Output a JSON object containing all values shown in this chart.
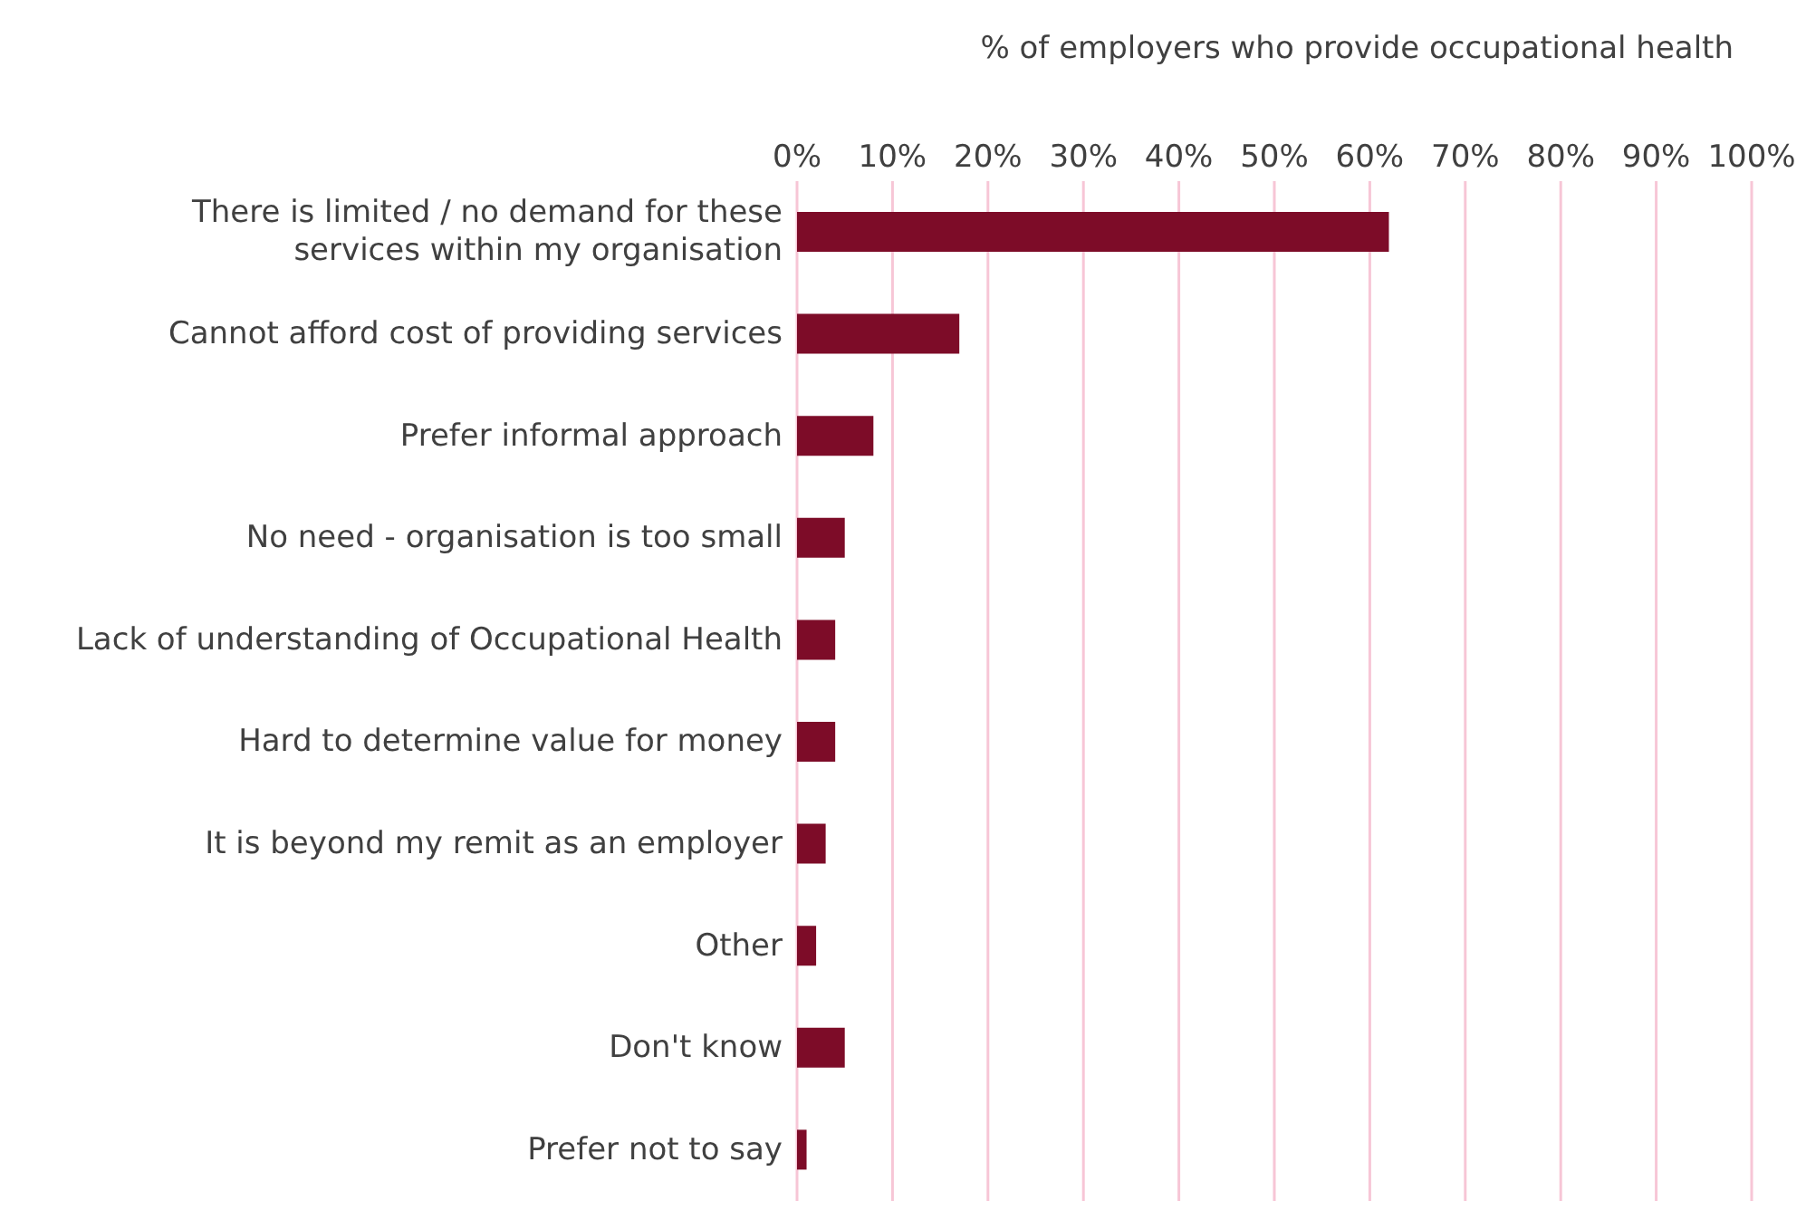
{
  "chart_data": {
    "type": "bar",
    "orientation": "horizontal",
    "xlabel": "% of employers who provide occupational health",
    "categories": [
      "There is limited / no demand for these services within my organisation",
      "Cannot afford cost of providing services",
      "Prefer informal approach",
      "No need - organisation is too small",
      "Lack of understanding of Occupational Health",
      "Hard to determine value for money",
      "It is beyond my remit as an employer",
      "Other",
      "Don't know",
      "Prefer not to say"
    ],
    "values": [
      62,
      17,
      8,
      5,
      4,
      4,
      3,
      2,
      5,
      1
    ],
    "color": "#7d0c28",
    "xlim": [
      0,
      100
    ],
    "xticks": [
      {
        "value": 0,
        "label": "0%"
      },
      {
        "value": 10,
        "label": "10%"
      },
      {
        "value": 20,
        "label": "20%"
      },
      {
        "value": 30,
        "label": "30%"
      },
      {
        "value": 40,
        "label": "40%"
      },
      {
        "value": 50,
        "label": "50%"
      },
      {
        "value": 60,
        "label": "60%"
      },
      {
        "value": 70,
        "label": "70%"
      },
      {
        "value": 80,
        "label": "80%"
      },
      {
        "value": 90,
        "label": "90%"
      },
      {
        "value": 100,
        "label": "100%"
      }
    ],
    "grid": "x"
  }
}
